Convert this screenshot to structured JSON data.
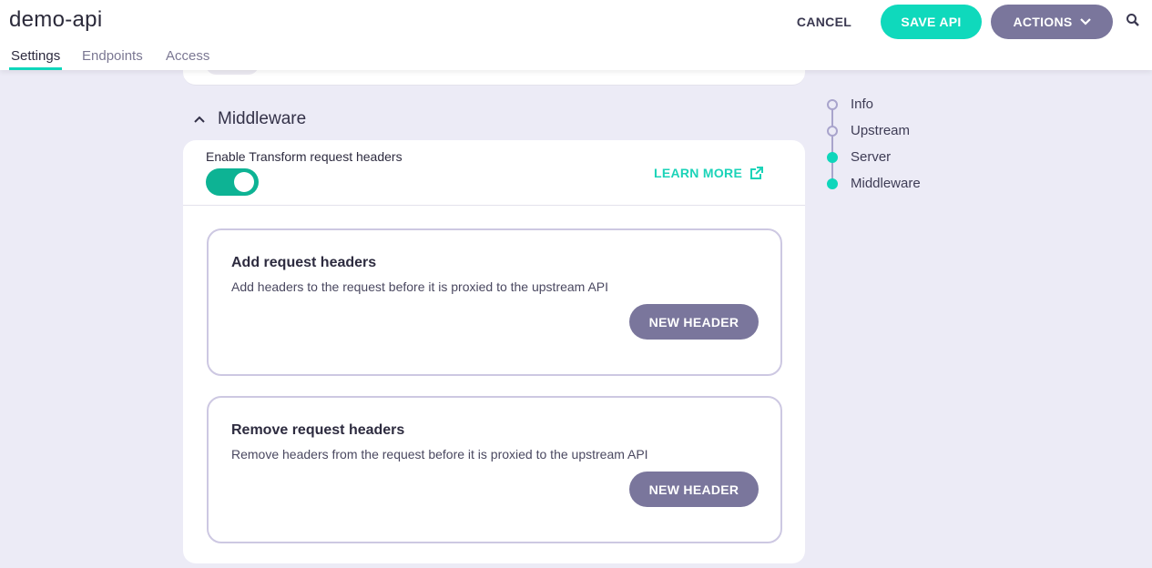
{
  "header": {
    "title": "demo-api",
    "tabs": [
      {
        "label": "Settings",
        "active": true
      },
      {
        "label": "Endpoints"
      },
      {
        "label": "Access"
      }
    ],
    "cancel": "CANCEL",
    "save": "SAVE API",
    "actions": "ACTIONS"
  },
  "section": {
    "title": "Middleware",
    "enable_label": "Enable Transform request headers",
    "enabled": true,
    "learn_more": "LEARN MORE"
  },
  "cards": [
    {
      "title": "Add request headers",
      "description": "Add headers to the request before it is proxied to the upstream API",
      "button": "NEW HEADER"
    },
    {
      "title": "Remove request headers",
      "description": "Remove headers from the request before it is proxied to the upstream API",
      "button": "NEW HEADER"
    }
  ],
  "nav": [
    {
      "label": "Info",
      "active": false
    },
    {
      "label": "Upstream",
      "active": false
    },
    {
      "label": "Server",
      "active": true
    },
    {
      "label": "Middleware",
      "active": true
    }
  ],
  "colors": {
    "accent": "#0fd6bb",
    "secondary": "#7a769c",
    "background": "#ecebf6"
  }
}
